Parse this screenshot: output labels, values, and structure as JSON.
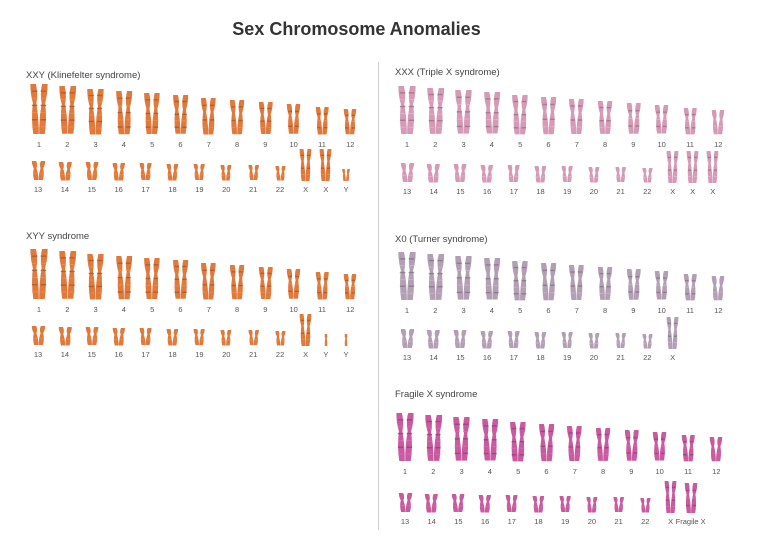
{
  "title": "Sex Chromosome Anomalies",
  "colors": {
    "xxy": "#e07a3c",
    "xyy": "#e07a3c",
    "triple_x": "#d49ab6",
    "turner": "#b39fb3",
    "fragile_x": "#c85aa0"
  },
  "panels": [
    {
      "id": "xxy",
      "title": "XXY (Klinefelter syndrome)",
      "row1": [
        "1",
        "2",
        "3",
        "4",
        "5",
        "6",
        "7",
        "8",
        "9",
        "10",
        "11",
        "12"
      ],
      "row2": [
        "13",
        "14",
        "15",
        "16",
        "17",
        "18",
        "19",
        "20",
        "21",
        "22",
        "X",
        "X",
        "Y"
      ]
    },
    {
      "id": "xyy",
      "title": "XYY syndrome",
      "row1": [
        "1",
        "2",
        "3",
        "4",
        "5",
        "6",
        "7",
        "8",
        "9",
        "10",
        "11",
        "12"
      ],
      "row2": [
        "13",
        "14",
        "15",
        "16",
        "17",
        "18",
        "19",
        "20",
        "21",
        "22",
        "X",
        "Y",
        "Y"
      ]
    },
    {
      "id": "triple_x",
      "title": "XXX (Triple X syndrome)",
      "row1": [
        "1",
        "2",
        "3",
        "4",
        "5",
        "6",
        "7",
        "8",
        "9",
        "10",
        "11",
        "12"
      ],
      "row2": [
        "13",
        "14",
        "15",
        "16",
        "17",
        "18",
        "19",
        "20",
        "21",
        "22",
        "X",
        "X",
        "X"
      ]
    },
    {
      "id": "turner",
      "title": "X0 (Turner syndrome)",
      "row1": [
        "1",
        "2",
        "3",
        "4",
        "5",
        "6",
        "7",
        "8",
        "9",
        "10",
        "11",
        "12"
      ],
      "row2": [
        "13",
        "14",
        "15",
        "16",
        "17",
        "18",
        "19",
        "20",
        "21",
        "22",
        "X"
      ]
    },
    {
      "id": "fragile_x",
      "title": "Fragile X syndrome",
      "row1": [
        "1",
        "2",
        "3",
        "4",
        "5",
        "6",
        "7",
        "8",
        "9",
        "10",
        "11",
        "12"
      ],
      "row2": [
        "13",
        "14",
        "15",
        "16",
        "17",
        "18",
        "19",
        "20",
        "21",
        "22",
        "X",
        "Fragile X"
      ]
    }
  ]
}
